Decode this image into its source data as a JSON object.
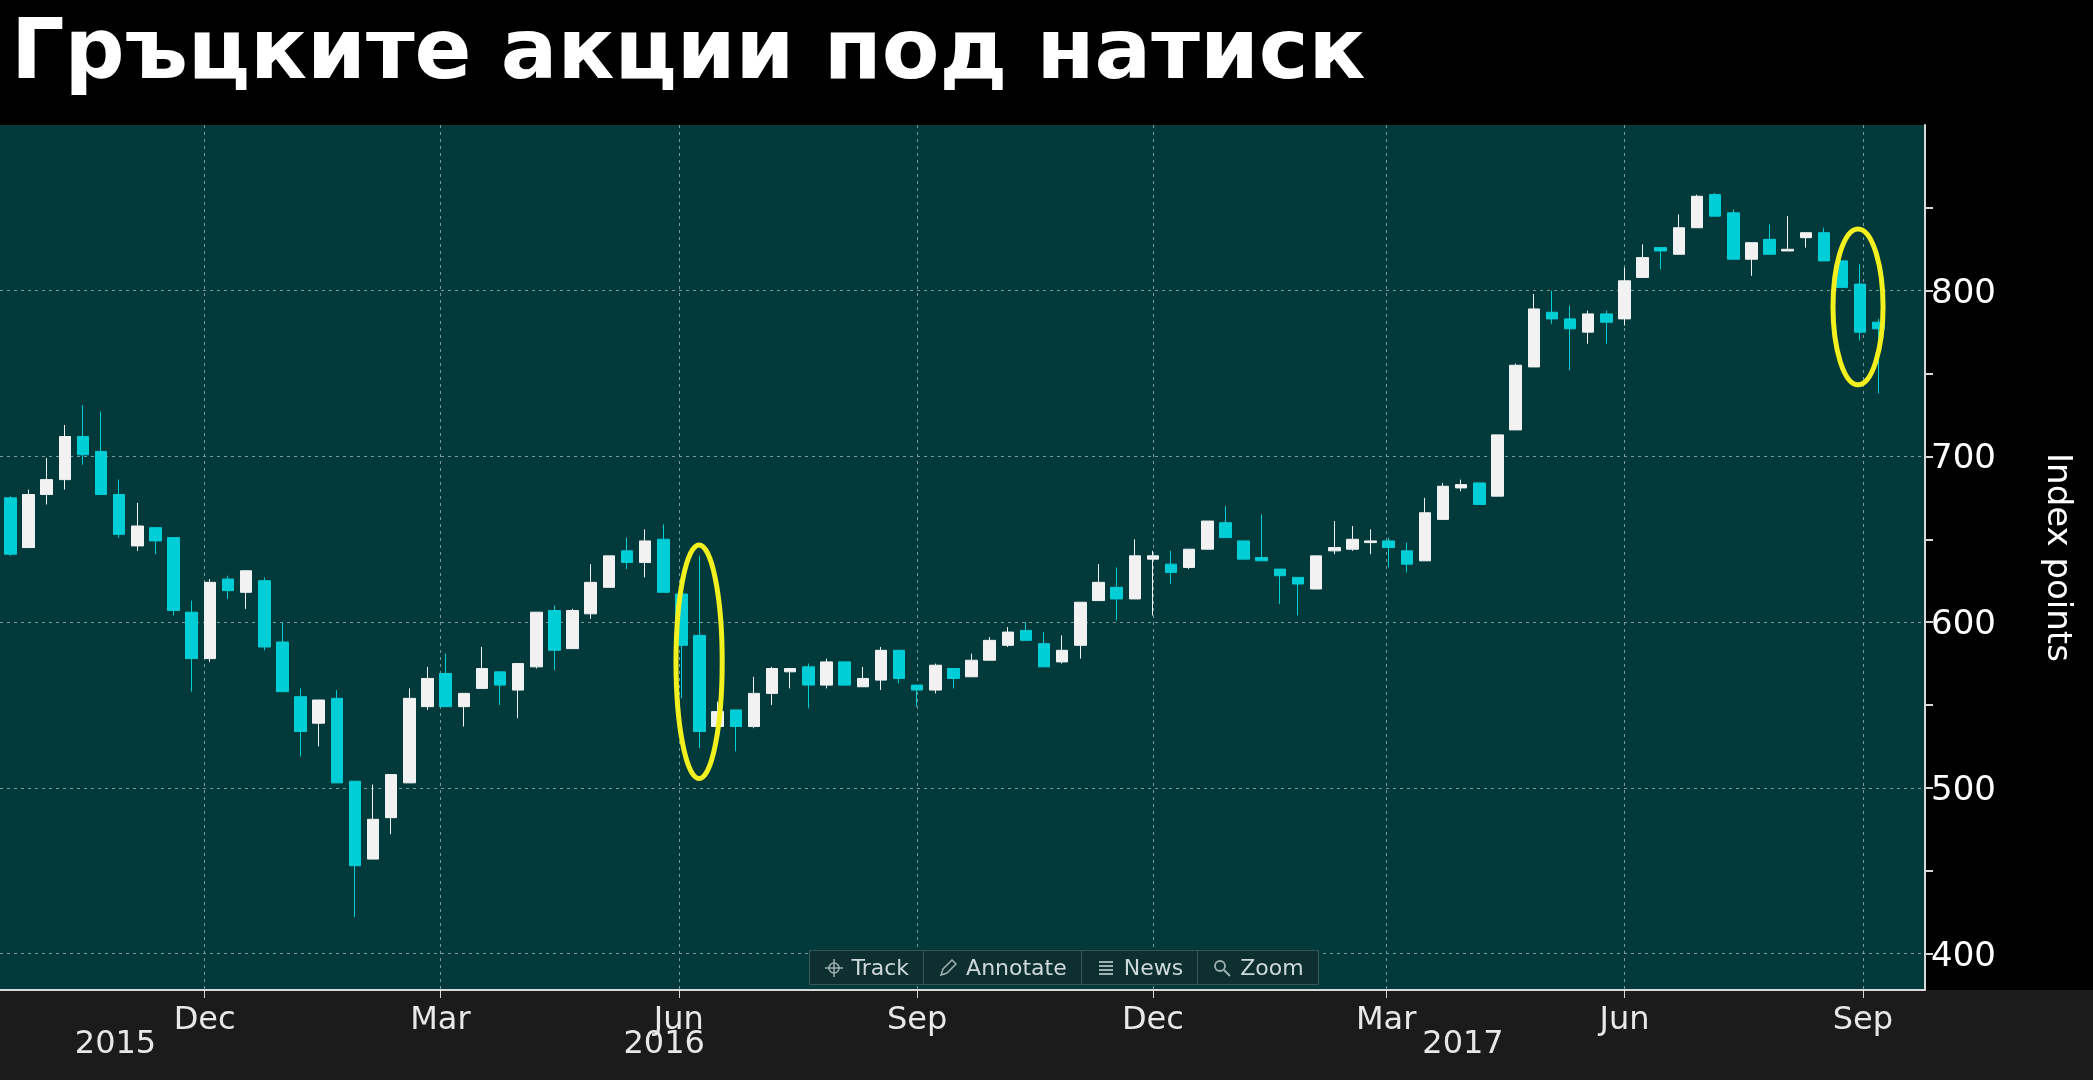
{
  "chart_data": {
    "type": "candlestick",
    "title": "Гръцките акции под натиск",
    "ylabel": "Index points",
    "x": [
      "2015-10-02",
      "2015-10-09",
      "2015-10-16",
      "2015-10-23",
      "2015-10-30",
      "2015-11-06",
      "2015-11-13",
      "2015-11-20",
      "2015-11-27",
      "2015-12-04",
      "2015-12-11",
      "2015-12-18",
      "2015-12-25",
      "2016-01-01",
      "2016-01-08",
      "2016-01-15",
      "2016-01-22",
      "2016-01-29",
      "2016-02-05",
      "2016-02-12",
      "2016-02-19",
      "2016-02-26",
      "2016-03-04",
      "2016-03-11",
      "2016-03-18",
      "2016-03-25",
      "2016-04-01",
      "2016-04-08",
      "2016-04-15",
      "2016-04-22",
      "2016-04-29",
      "2016-05-06",
      "2016-05-13",
      "2016-05-20",
      "2016-05-27",
      "2016-06-03",
      "2016-06-10",
      "2016-06-17",
      "2016-06-24",
      "2016-07-01",
      "2016-07-08",
      "2016-07-15",
      "2016-07-22",
      "2016-07-29",
      "2016-08-05",
      "2016-08-12",
      "2016-08-19",
      "2016-08-26",
      "2016-09-02",
      "2016-09-09",
      "2016-09-16",
      "2016-09-23",
      "2016-09-30",
      "2016-10-07",
      "2016-10-14",
      "2016-10-21",
      "2016-10-28",
      "2016-11-04",
      "2016-11-11",
      "2016-11-18",
      "2016-11-25",
      "2016-12-02",
      "2016-12-09",
      "2016-12-16",
      "2016-12-23",
      "2016-12-30",
      "2017-01-06",
      "2017-01-13",
      "2017-01-20",
      "2017-01-27",
      "2017-02-03",
      "2017-02-10",
      "2017-02-17",
      "2017-02-24",
      "2017-03-03",
      "2017-03-10",
      "2017-03-17",
      "2017-03-24",
      "2017-03-31",
      "2017-04-07",
      "2017-04-14",
      "2017-04-21",
      "2017-04-28",
      "2017-05-05",
      "2017-05-12",
      "2017-05-19",
      "2017-05-26",
      "2017-06-02",
      "2017-06-09",
      "2017-06-16",
      "2017-06-23",
      "2017-06-30",
      "2017-07-07",
      "2017-07-14",
      "2017-07-21",
      "2017-07-28",
      "2017-08-04",
      "2017-08-11",
      "2017-08-18",
      "2017-08-25",
      "2017-09-01",
      "2017-09-08",
      "2017-09-15",
      "2017-09-22"
    ],
    "ohlc": [
      [
        675,
        676,
        640,
        641
      ],
      [
        645,
        680,
        645,
        677
      ],
      [
        677,
        699,
        671,
        686
      ],
      [
        686,
        719,
        680,
        712
      ],
      [
        712,
        731,
        695,
        701
      ],
      [
        703,
        727,
        677,
        677
      ],
      [
        677,
        686,
        651,
        653
      ],
      [
        646,
        672,
        643,
        658
      ],
      [
        657,
        657,
        641,
        649
      ],
      [
        651,
        651,
        604,
        607
      ],
      [
        606,
        613,
        558,
        578
      ],
      [
        578,
        626,
        576,
        624
      ],
      [
        626,
        628,
        614,
        619
      ],
      [
        618,
        631,
        608,
        631
      ],
      [
        625,
        627,
        583,
        585
      ],
      [
        588,
        600,
        558,
        558
      ],
      [
        555,
        560,
        519,
        534
      ],
      [
        539,
        553,
        525,
        553
      ],
      [
        554,
        559,
        503,
        503
      ],
      [
        504,
        504,
        422,
        453
      ],
      [
        457,
        502,
        457,
        481
      ],
      [
        482,
        508,
        472,
        508
      ],
      [
        503,
        560,
        503,
        554
      ],
      [
        549,
        573,
        547,
        566
      ],
      [
        569,
        581,
        549,
        549
      ],
      [
        549,
        557,
        537,
        557
      ],
      [
        560,
        585,
        560,
        572
      ],
      [
        570,
        570,
        550,
        562
      ],
      [
        559,
        575,
        542,
        575
      ],
      [
        573,
        606,
        572,
        606
      ],
      [
        607,
        610,
        571,
        583
      ],
      [
        584,
        608,
        584,
        607
      ],
      [
        605,
        635,
        602,
        624
      ],
      [
        621,
        640,
        621,
        640
      ],
      [
        643,
        651,
        632,
        636
      ],
      [
        636,
        656,
        627,
        649
      ],
      [
        650,
        659,
        618,
        618
      ],
      [
        617,
        617,
        554,
        586
      ],
      [
        592,
        640,
        524,
        534
      ],
      [
        537,
        552,
        537,
        546
      ],
      [
        547,
        547,
        522,
        537
      ],
      [
        537,
        567,
        536,
        557
      ],
      [
        557,
        573,
        550,
        572
      ],
      [
        570,
        572,
        560,
        572
      ],
      [
        573,
        575,
        548,
        562
      ],
      [
        562,
        578,
        560,
        576
      ],
      [
        576,
        576,
        562,
        562
      ],
      [
        561,
        573,
        561,
        566
      ],
      [
        565,
        585,
        559,
        583
      ],
      [
        583,
        583,
        563,
        566
      ],
      [
        562,
        562,
        549,
        559
      ],
      [
        559,
        575,
        557,
        574
      ],
      [
        572,
        572,
        560,
        566
      ],
      [
        567,
        581,
        567,
        577
      ],
      [
        577,
        591,
        577,
        589
      ],
      [
        586,
        597,
        585,
        594
      ],
      [
        595,
        600,
        589,
        589
      ],
      [
        587,
        594,
        573,
        573
      ],
      [
        576,
        592,
        575,
        583
      ],
      [
        586,
        612,
        578,
        612
      ],
      [
        613,
        635,
        613,
        624
      ],
      [
        621,
        633,
        601,
        614
      ],
      [
        614,
        650,
        614,
        640
      ],
      [
        638,
        643,
        604,
        640
      ],
      [
        635,
        643,
        623,
        630
      ],
      [
        633,
        644,
        632,
        644
      ],
      [
        644,
        661,
        644,
        661
      ],
      [
        660,
        670,
        651,
        651
      ],
      [
        649,
        649,
        638,
        638
      ],
      [
        639,
        665,
        637,
        637
      ],
      [
        632,
        632,
        611,
        628
      ],
      [
        627,
        627,
        604,
        623
      ],
      [
        620,
        640,
        620,
        640
      ],
      [
        643,
        661,
        641,
        645
      ],
      [
        644,
        658,
        643,
        650
      ],
      [
        648,
        656,
        641,
        649
      ],
      [
        649,
        651,
        633,
        645
      ],
      [
        643,
        648,
        630,
        635
      ],
      [
        637,
        675,
        637,
        666
      ],
      [
        662,
        684,
        662,
        682
      ],
      [
        681,
        686,
        679,
        683
      ],
      [
        684,
        684,
        671,
        671
      ],
      [
        676,
        713,
        676,
        713
      ],
      [
        716,
        756,
        716,
        755
      ],
      [
        754,
        798,
        754,
        789
      ],
      [
        787,
        800,
        780,
        783
      ],
      [
        783,
        791,
        752,
        777
      ],
      [
        775,
        788,
        768,
        786
      ],
      [
        786,
        788,
        768,
        781
      ],
      [
        783,
        814,
        779,
        806
      ],
      [
        808,
        828,
        808,
        820
      ],
      [
        826,
        826,
        813,
        824
      ],
      [
        822,
        846,
        822,
        838
      ],
      [
        838,
        858,
        838,
        857
      ],
      [
        858,
        859,
        845,
        845
      ],
      [
        847,
        849,
        819,
        819
      ],
      [
        819,
        829,
        809,
        829
      ],
      [
        831,
        840,
        822,
        822
      ],
      [
        824,
        845,
        824,
        825
      ],
      [
        832,
        835,
        826,
        835
      ],
      [
        835,
        838,
        818,
        818
      ],
      [
        818,
        818,
        802,
        802
      ],
      [
        804,
        816,
        770,
        775
      ],
      [
        781,
        783,
        738,
        777
      ]
    ],
    "colors": [
      "#00ced6",
      "#f2f2f2",
      "#f2f2f2",
      "#f2f2f2",
      "#00ced6",
      "#00ced6",
      "#00ced6",
      "#f2f2f2",
      "#00ced6",
      "#00ced6",
      "#00ced6",
      "#f2f2f2",
      "#00ced6",
      "#f2f2f2",
      "#00ced6",
      "#00ced6",
      "#00ced6",
      "#f2f2f2",
      "#00ced6",
      "#00ced6",
      "#f2f2f2",
      "#f2f2f2",
      "#f2f2f2",
      "#f2f2f2",
      "#00ced6",
      "#f2f2f2",
      "#f2f2f2",
      "#00ced6",
      "#f2f2f2",
      "#f2f2f2",
      "#00ced6",
      "#f2f2f2",
      "#f2f2f2",
      "#f2f2f2",
      "#00ced6",
      "#f2f2f2",
      "#00ced6",
      "#00ced6",
      "#00ced6",
      "#f2f2f2",
      "#00ced6",
      "#f2f2f2",
      "#f2f2f2",
      "#f2f2f2",
      "#00ced6",
      "#f2f2f2",
      "#00ced6",
      "#f2f2f2",
      "#f2f2f2",
      "#00ced6",
      "#00ced6",
      "#f2f2f2",
      "#00ced6",
      "#f2f2f2",
      "#f2f2f2",
      "#f2f2f2",
      "#00ced6",
      "#00ced6",
      "#f2f2f2",
      "#f2f2f2",
      "#f2f2f2",
      "#00ced6",
      "#f2f2f2",
      "#f2f2f2",
      "#00ced6",
      "#f2f2f2",
      "#f2f2f2",
      "#00ced6",
      "#00ced6",
      "#00ced6",
      "#00ced6",
      "#00ced6",
      "#f2f2f2",
      "#f2f2f2",
      "#f2f2f2",
      "#f2f2f2",
      "#00ced6",
      "#00ced6",
      "#f2f2f2",
      "#f2f2f2",
      "#f2f2f2",
      "#00ced6",
      "#f2f2f2",
      "#f2f2f2",
      "#f2f2f2",
      "#00ced6",
      "#00ced6",
      "#f2f2f2",
      "#00ced6",
      "#f2f2f2",
      "#f2f2f2",
      "#00ced6",
      "#f2f2f2",
      "#f2f2f2",
      "#00ced6",
      "#00ced6",
      "#f2f2f2",
      "#00ced6",
      "#f2f2f2",
      "#f2f2f2",
      "#00ced6",
      "#00ced6",
      "#00ced6",
      "#00ced6"
    ],
    "xlim": [
      "2015-09-28",
      "2017-10-10"
    ],
    "xticks": [
      {
        "value": "2015-12-16",
        "label": "Dec"
      },
      {
        "value": "2016-03-16",
        "label": "Mar"
      },
      {
        "value": "2016-06-16",
        "label": "Jun"
      },
      {
        "value": "2016-09-16",
        "label": "Sep"
      },
      {
        "value": "2016-12-16",
        "label": "Dec"
      },
      {
        "value": "2017-03-16",
        "label": "Mar"
      },
      {
        "value": "2017-06-16",
        "label": "Jun"
      },
      {
        "value": "2017-09-16",
        "label": "Sep"
      }
    ],
    "ylim": [
      378,
      900
    ],
    "yticks": [
      400,
      {
        "value": 450,
        "label": null
      },
      500,
      {
        "value": 550,
        "label": null
      },
      600,
      {
        "value": 650,
        "label": null
      },
      700,
      {
        "value": 750,
        "label": null
      },
      800,
      {
        "value": 850,
        "label": null
      }
    ],
    "grid": true,
    "annotations": [
      "Track",
      "Annotate",
      "News",
      "Zoom",
      "2015",
      "2016",
      "2017"
    ]
  }
}
